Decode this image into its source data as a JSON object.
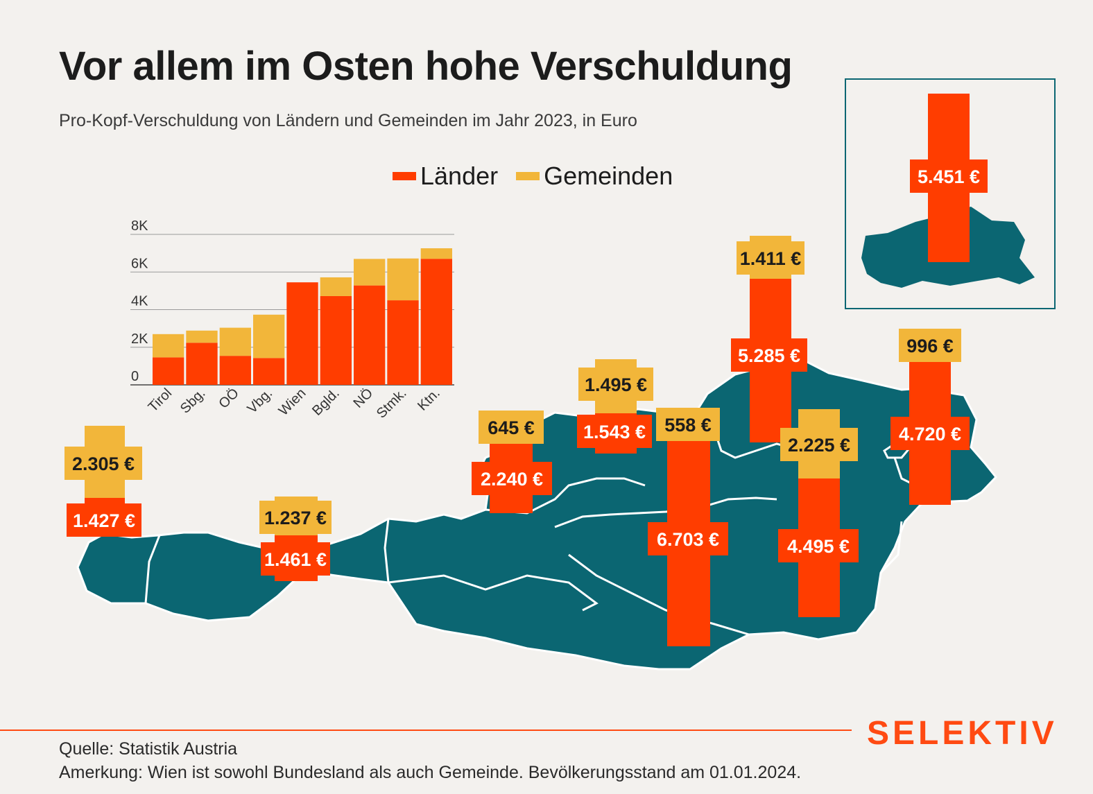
{
  "title": "Vor allem im Osten hohe Verschuldung",
  "subtitle": "Pro-Kopf-Verschuldung von Ländern und Gemeinden im Jahr 2023, in Euro",
  "legend": [
    {
      "label": "Länder",
      "color": "#ff3d00"
    },
    {
      "label": "Gemeinden",
      "color": "#f2b63a"
    }
  ],
  "colors": {
    "laender": "#ff3d00",
    "gemeinden": "#f2b63a",
    "map": "#0b6672",
    "background": "#f3f1ee",
    "brand": "#ff4a12"
  },
  "brand": "SELEKTIV",
  "footer": {
    "source": "Quelle: Statistik Austria",
    "note": "Amerkung: Wien ist sowohl Bundesland als auch Gemeinde. Bevölkerungsstand am 01.01.2024."
  },
  "map_labels": [
    {
      "state": "Vbg.",
      "laender": "1.427 €",
      "gemeinden": "2.305 €"
    },
    {
      "state": "Tirol",
      "laender": "1.461 €",
      "gemeinden": "1.237 €"
    },
    {
      "state": "Sbg.",
      "laender": "2.240 €",
      "gemeinden": "645 €"
    },
    {
      "state": "OÖ",
      "laender": "1.543 €",
      "gemeinden": "1.495 €"
    },
    {
      "state": "Ktn.",
      "laender": "6.703 €",
      "gemeinden": "558 €"
    },
    {
      "state": "NÖ",
      "laender": "5.285 €",
      "gemeinden": "1.411 €"
    },
    {
      "state": "Stmk.",
      "laender": "4.495 €",
      "gemeinden": "2.225 €"
    },
    {
      "state": "Bgld.",
      "laender": "4.720 €",
      "gemeinden": "996 €"
    },
    {
      "state": "Wien",
      "laender": "5.451 €"
    }
  ],
  "chart_data": {
    "type": "bar",
    "stacked": true,
    "categories": [
      "Tirol",
      "Sbg.",
      "OÖ",
      "Vbg.",
      "Wien",
      "Bgld.",
      "NÖ",
      "Stmk.",
      "Ktn."
    ],
    "series": [
      {
        "name": "Länder",
        "values": [
          1461,
          2240,
          1543,
          1427,
          5451,
          4720,
          5285,
          4495,
          6703
        ]
      },
      {
        "name": "Gemeinden",
        "values": [
          1237,
          645,
          1495,
          2305,
          0,
          996,
          1411,
          2225,
          558
        ]
      }
    ],
    "yticks": [
      "0",
      "2K",
      "4K",
      "6K",
      "8K"
    ],
    "ylim": [
      0,
      8000
    ],
    "grid": true
  }
}
